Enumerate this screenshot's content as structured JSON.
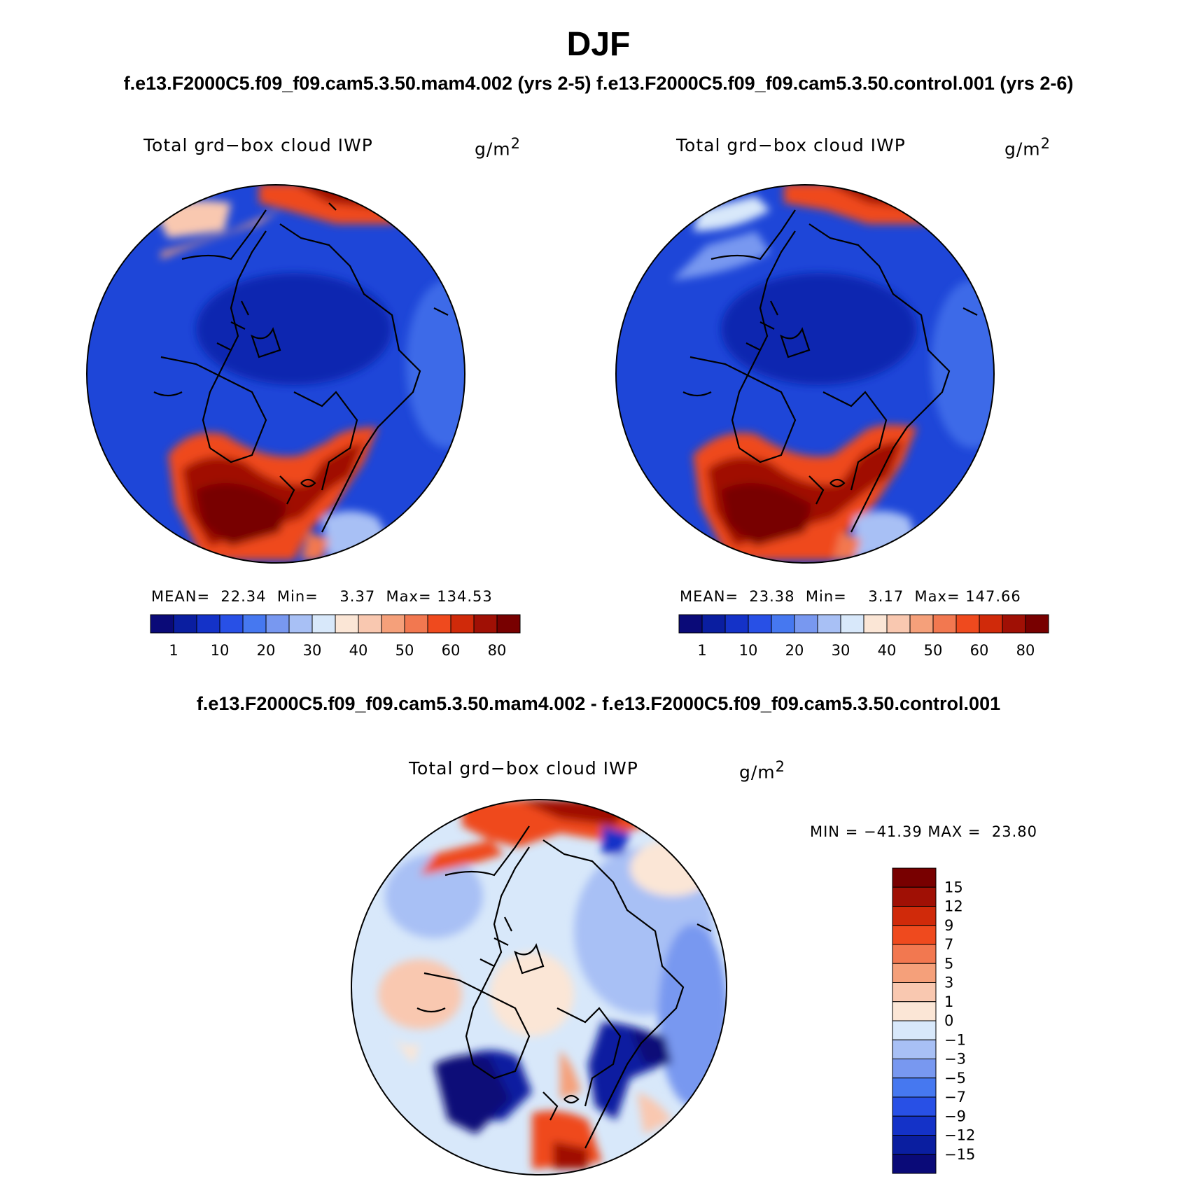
{
  "header": {
    "title": "DJF",
    "subtitle": "f.e13.F2000C5.f09_f09.cam5.3.50.mam4.002 (yrs 2-5) f.e13.F2000C5.f09_f09.cam5.3.50.control.001 (yrs 2-6)",
    "diff_title": "f.e13.F2000C5.f09_f09.cam5.3.50.mam4.002 - f.e13.F2000C5.f09_f09.cam5.3.50.control.001"
  },
  "panels": [
    {
      "name": "mam4",
      "variable": "Total grd−box cloud IWP",
      "units": "g/m",
      "units_exp": "2",
      "stats": "MEAN=  22.34  Min=    3.37  Max= 134.53"
    },
    {
      "name": "control",
      "variable": "Total grd−box cloud IWP",
      "units": "g/m",
      "units_exp": "2",
      "stats": "MEAN=  23.38  Min=    3.17  Max= 147.66"
    },
    {
      "name": "difference",
      "variable": "Total grd−box cloud IWP",
      "units": "g/m",
      "units_exp": "2",
      "stats": "MIN = −41.39 MAX =  23.80"
    }
  ],
  "colorbar_abs": {
    "labels": [
      "1",
      "10",
      "20",
      "30",
      "40",
      "50",
      "60",
      "80"
    ],
    "colors": [
      "#0a0a78",
      "#0a1ea0",
      "#1432c8",
      "#2850e6",
      "#4678f0",
      "#7898f0",
      "#a8c0f5",
      "#d8e8fa",
      "#fbe6d6",
      "#f9c8b0",
      "#f5a07a",
      "#f27850",
      "#ef4a1e",
      "#d02a0a",
      "#a01005",
      "#780000"
    ]
  },
  "colorbar_diff": {
    "labels": [
      "15",
      "12",
      "9",
      "7",
      "5",
      "3",
      "1",
      "0",
      "−1",
      "−3",
      "−5",
      "−7",
      "−9",
      "−12",
      "−15"
    ],
    "colors": [
      "#780000",
      "#a01005",
      "#d02a0a",
      "#ef4a1e",
      "#f27850",
      "#f5a07a",
      "#f9c8b0",
      "#fbe6d6",
      "#d8e8fa",
      "#a8c0f5",
      "#7898f0",
      "#4678f0",
      "#2850e6",
      "#1432c8",
      "#0a1ea0",
      "#0a0a78"
    ]
  }
}
